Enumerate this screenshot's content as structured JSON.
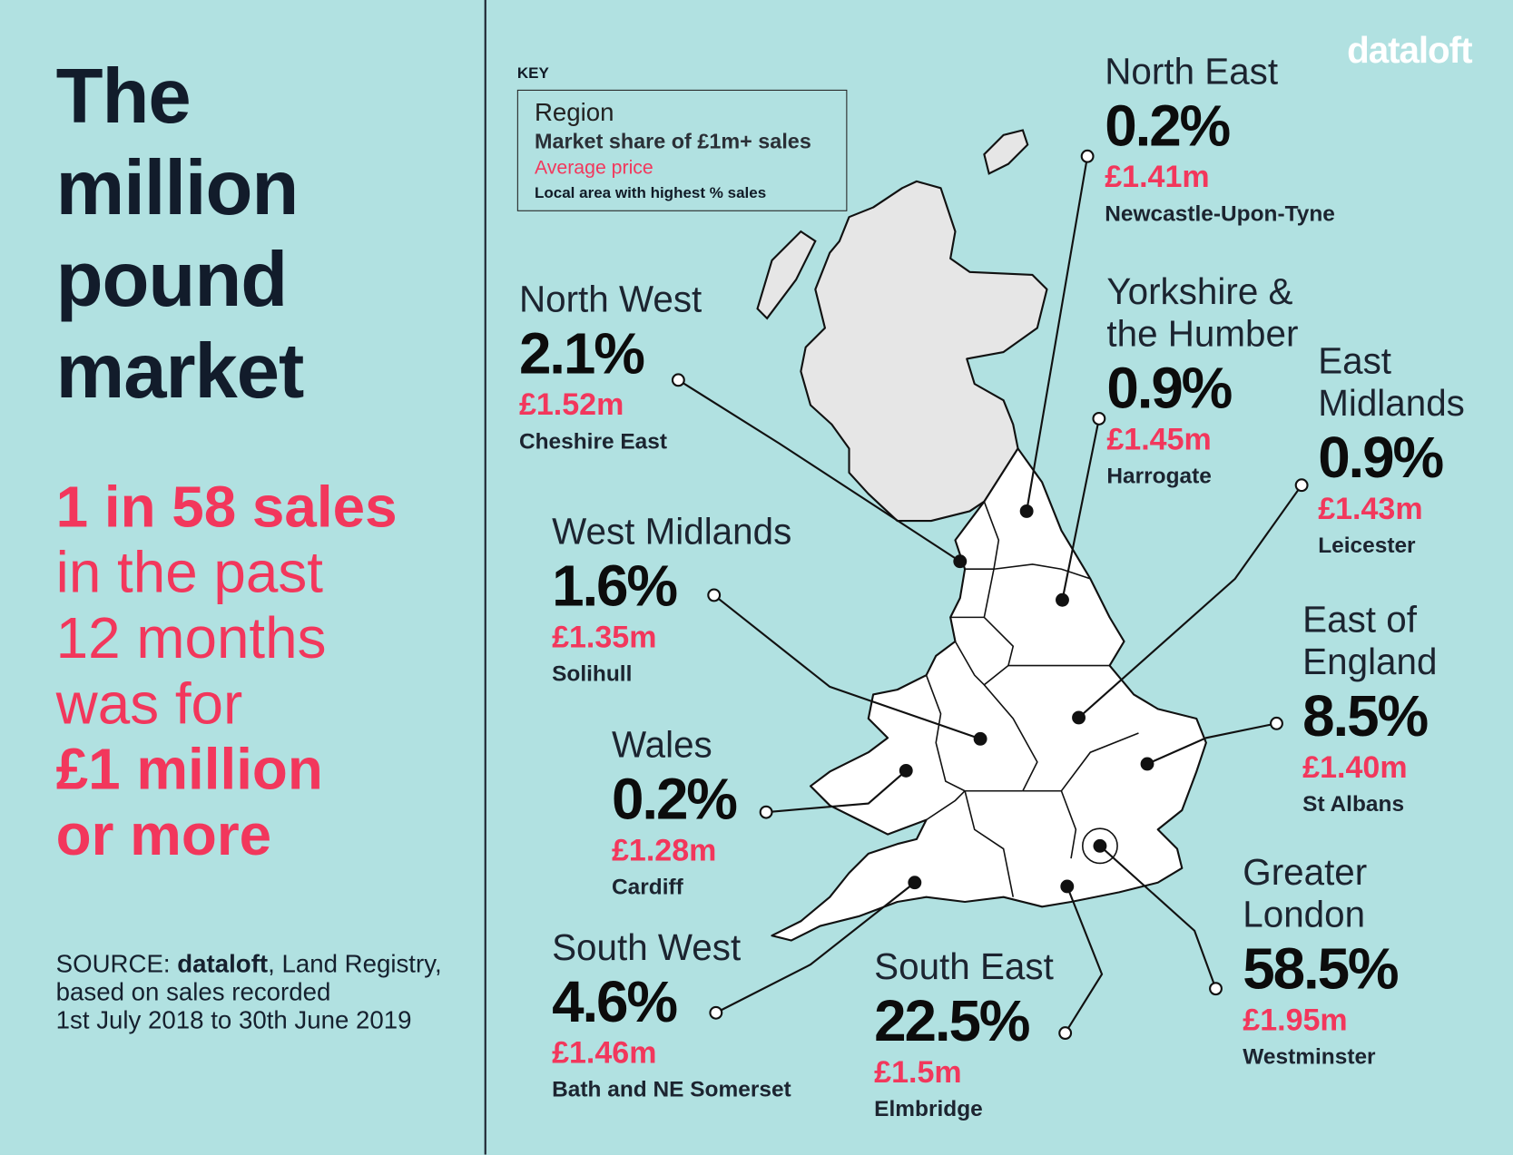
{
  "headline": [
    "The",
    "million",
    "pound",
    "market"
  ],
  "stat": {
    "line1": "1 in 58 sales",
    "line2": "in the past",
    "line3": "12 months",
    "line4": "was for",
    "line5": "£1 million",
    "line6": "or more"
  },
  "source": {
    "label": "SOURCE:",
    "brand": "dataloft",
    "rest1": ", Land Registry,",
    "line2": "based on sales recorded",
    "line3": "1st July 2018 to 30th June 2019"
  },
  "logo": "dataloft",
  "key": {
    "label": "KEY",
    "region": "Region",
    "share": "Market share of £1m+ sales",
    "price": "Average price",
    "area": "Local area with highest % sales"
  },
  "colors": {
    "background": "#b1e1e1",
    "accent": "#f2375c",
    "text": "#111b27",
    "scotland": "#e6e6e6",
    "england_wales": "#ffffff"
  },
  "regions": [
    {
      "name": "North East",
      "share": "0.2%",
      "price": "£1.41m",
      "area": "Newcastle-Upon-Tyne"
    },
    {
      "name": "North West",
      "share": "2.1%",
      "price": "£1.52m",
      "area": "Cheshire East"
    },
    {
      "name": "Yorkshire & the Humber",
      "share": "0.9%",
      "price": "£1.45m",
      "area": "Harrogate"
    },
    {
      "name": "East Midlands",
      "share": "0.9%",
      "price": "£1.43m",
      "area": "Leicester"
    },
    {
      "name": "West Midlands",
      "share": "1.6%",
      "price": "£1.35m",
      "area": "Solihull"
    },
    {
      "name": "East of England",
      "share": "8.5%",
      "price": "£1.40m",
      "area": "St Albans"
    },
    {
      "name": "Wales",
      "share": "0.2%",
      "price": "£1.28m",
      "area": "Cardiff"
    },
    {
      "name": "Greater London",
      "share": "58.5%",
      "price": "£1.95m",
      "area": "Westminster"
    },
    {
      "name": "South West",
      "share": "4.6%",
      "price": "£1.46m",
      "area": "Bath and NE Somerset"
    },
    {
      "name": "South East",
      "share": "22.5%",
      "price": "£1.5m",
      "area": "Elmbridge"
    }
  ]
}
